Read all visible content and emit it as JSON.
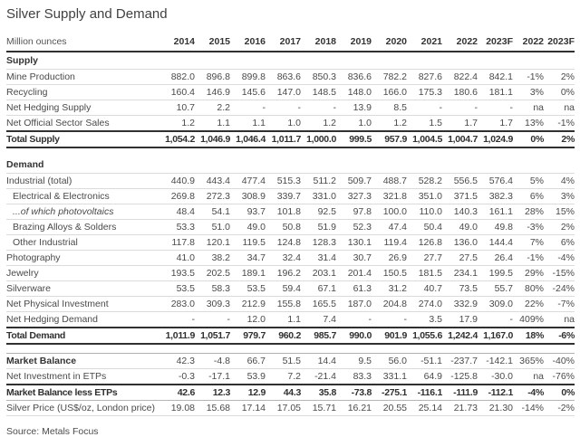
{
  "title": "Silver Supply and Demand",
  "source": "Source: Metals Focus",
  "colors": {
    "background": "#ffffff",
    "dark_rule": "#303030",
    "light_rule": "#dbdbdb",
    "medium_rule": "#b0b0b0",
    "text": "#4a4a4a",
    "bold_text": "#303030"
  },
  "chart_data": {
    "type": "table",
    "unit_label": "Million ounces",
    "columns": [
      "2014",
      "2015",
      "2016",
      "2017",
      "2018",
      "2019",
      "2020",
      "2021",
      "2022",
      "2023F",
      "2022",
      "2023F"
    ],
    "rows": [
      {
        "type": "section",
        "label": "Supply"
      },
      {
        "type": "data",
        "label": "Mine Production",
        "values": [
          "882.0",
          "896.8",
          "899.8",
          "863.6",
          "850.3",
          "836.6",
          "782.2",
          "827.6",
          "822.4",
          "842.1",
          "-1%",
          "2%"
        ]
      },
      {
        "type": "data",
        "label": "Recycling",
        "values": [
          "160.4",
          "146.9",
          "145.6",
          "147.0",
          "148.5",
          "148.0",
          "166.0",
          "175.3",
          "180.6",
          "181.1",
          "3%",
          "0%"
        ]
      },
      {
        "type": "data",
        "label": "Net Hedging Supply",
        "values": [
          "10.7",
          "2.2",
          "-",
          "-",
          "-",
          "13.9",
          "8.5",
          "-",
          "-",
          "-",
          "na",
          "na"
        ]
      },
      {
        "type": "data",
        "label": "Net Official Sector Sales",
        "values": [
          "1.2",
          "1.1",
          "1.1",
          "1.0",
          "1.2",
          "1.0",
          "1.2",
          "1.5",
          "1.7",
          "1.7",
          "13%",
          "-1%"
        ]
      },
      {
        "type": "total",
        "label": "Total Supply",
        "values": [
          "1,054.2",
          "1,046.9",
          "1,046.4",
          "1,011.7",
          "1,000.0",
          "999.5",
          "957.9",
          "1,004.5",
          "1,004.7",
          "1,024.9",
          "0%",
          "2%"
        ]
      },
      {
        "type": "gap"
      },
      {
        "type": "section",
        "label": "Demand"
      },
      {
        "type": "data",
        "label": "Industrial (total)",
        "values": [
          "440.9",
          "443.4",
          "477.4",
          "515.3",
          "511.2",
          "509.7",
          "488.7",
          "528.2",
          "556.5",
          "576.4",
          "5%",
          "4%"
        ]
      },
      {
        "type": "data",
        "indent": true,
        "label": "Electrical & Electronics",
        "values": [
          "269.8",
          "272.3",
          "308.9",
          "339.7",
          "331.0",
          "327.3",
          "321.8",
          "351.0",
          "371.5",
          "382.3",
          "6%",
          "3%"
        ]
      },
      {
        "type": "data",
        "indent": true,
        "italic": true,
        "label": "...of which photovoltaics",
        "values": [
          "48.4",
          "54.1",
          "93.7",
          "101.8",
          "92.5",
          "97.8",
          "100.0",
          "110.0",
          "140.3",
          "161.1",
          "28%",
          "15%"
        ]
      },
      {
        "type": "data",
        "indent": true,
        "label": "Brazing Alloys & Solders",
        "values": [
          "53.3",
          "51.0",
          "49.0",
          "50.8",
          "51.9",
          "52.3",
          "47.4",
          "50.4",
          "49.0",
          "49.8",
          "-3%",
          "2%"
        ]
      },
      {
        "type": "data",
        "indent": true,
        "label": "Other Industrial",
        "values": [
          "117.8",
          "120.1",
          "119.5",
          "124.8",
          "128.3",
          "130.1",
          "119.4",
          "126.8",
          "136.0",
          "144.4",
          "7%",
          "6%"
        ]
      },
      {
        "type": "data",
        "label": "Photography",
        "values": [
          "41.0",
          "38.2",
          "34.7",
          "32.4",
          "31.4",
          "30.7",
          "26.9",
          "27.7",
          "27.5",
          "26.4",
          "-1%",
          "-4%"
        ]
      },
      {
        "type": "data",
        "label": "Jewelry",
        "values": [
          "193.5",
          "202.5",
          "189.1",
          "196.2",
          "203.1",
          "201.4",
          "150.5",
          "181.5",
          "234.1",
          "199.5",
          "29%",
          "-15%"
        ]
      },
      {
        "type": "data",
        "label": "Silverware",
        "values": [
          "53.5",
          "58.3",
          "53.5",
          "59.4",
          "67.1",
          "61.3",
          "31.2",
          "40.7",
          "73.5",
          "55.7",
          "80%",
          "-24%"
        ]
      },
      {
        "type": "data",
        "label": "Net Physical Investment",
        "values": [
          "283.0",
          "309.3",
          "212.9",
          "155.8",
          "165.5",
          "187.0",
          "204.8",
          "274.0",
          "332.9",
          "309.0",
          "22%",
          "-7%"
        ]
      },
      {
        "type": "data",
        "label": "Net Hedging Demand",
        "values": [
          "-",
          "-",
          "12.0",
          "1.1",
          "7.4",
          "-",
          "-",
          "3.5",
          "17.9",
          "-",
          "409%",
          "na"
        ]
      },
      {
        "type": "total",
        "label": "Total Demand",
        "values": [
          "1,011.9",
          "1,051.7",
          "979.7",
          "960.2",
          "985.7",
          "990.0",
          "901.9",
          "1,055.6",
          "1,242.4",
          "1,167.0",
          "18%",
          "-6%"
        ]
      },
      {
        "type": "gap",
        "rule": true
      },
      {
        "type": "boldlabel",
        "label": "Market Balance",
        "values": [
          "42.3",
          "-4.8",
          "66.7",
          "51.5",
          "14.4",
          "9.5",
          "56.0",
          "-51.1",
          "-237.7",
          "-142.1",
          "365%",
          "-40%"
        ]
      },
      {
        "type": "data",
        "label": "Net Investment in ETPs",
        "values": [
          "-0.3",
          "-17.1",
          "53.9",
          "7.2",
          "-21.4",
          "83.3",
          "331.1",
          "64.9",
          "-125.8",
          "-30.0",
          "na",
          "-76%"
        ]
      },
      {
        "type": "subtotal",
        "label": "Market Balance less ETPs",
        "values": [
          "42.6",
          "12.3",
          "12.9",
          "44.3",
          "35.8",
          "-73.8",
          "-275.1",
          "-116.1",
          "-111.9",
          "-112.1",
          "-4%",
          "0%"
        ]
      },
      {
        "type": "data",
        "label": "Silver Price (US$/oz, London price)",
        "values": [
          "19.08",
          "15.68",
          "17.14",
          "17.05",
          "15.71",
          "16.21",
          "20.55",
          "25.14",
          "21.73",
          "21.30",
          "-14%",
          "-2%"
        ]
      }
    ]
  }
}
